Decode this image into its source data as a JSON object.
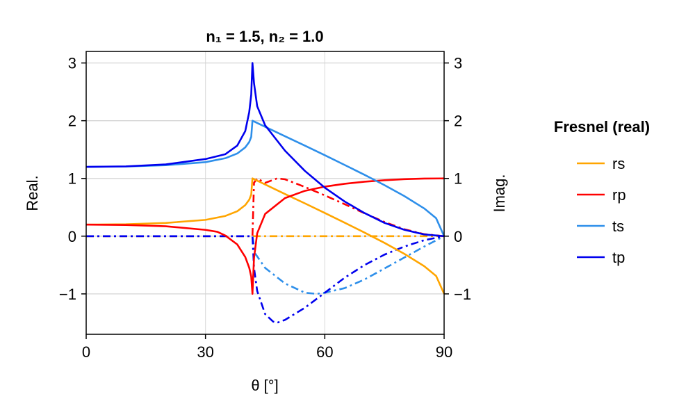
{
  "chart_data": {
    "type": "line",
    "title": "n₁ = 1.5, n₂ = 1.0",
    "xlabel": "θ [°]",
    "ylabel_left": "Real.",
    "ylabel_right": "Imag.",
    "xlim": [
      0,
      90
    ],
    "ylim": [
      -1.7,
      3.2
    ],
    "x_ticks": [
      0,
      30,
      60,
      90
    ],
    "x_tick_labels": [
      "0",
      "30",
      "60",
      "90"
    ],
    "y_ticks": [
      -1,
      0,
      1,
      2,
      3
    ],
    "y_tick_labels": [
      "−1",
      "0",
      "1",
      "2",
      "3"
    ],
    "grid": true,
    "legend": {
      "title": "Fresnel (real)",
      "placement": "right",
      "entries": [
        "rs",
        "rp",
        "ts",
        "tp"
      ]
    },
    "n1": 1.5,
    "n2": 1.0,
    "line_styles": {
      "real": "solid",
      "imag": "dashdot"
    },
    "series": [
      {
        "name": "rs",
        "color": "#FFA500",
        "real": [
          [
            0,
            0.2
          ],
          [
            10,
            0.206
          ],
          [
            20,
            0.229
          ],
          [
            30,
            0.282
          ],
          [
            35,
            0.35
          ],
          [
            38,
            0.432
          ],
          [
            40,
            0.538
          ],
          [
            41,
            0.631
          ],
          [
            41.5,
            0.72
          ],
          [
            41.81,
            1.0
          ],
          [
            45,
            0.895
          ],
          [
            50,
            0.73
          ],
          [
            55,
            0.568
          ],
          [
            60,
            0.402
          ],
          [
            65,
            0.233
          ],
          [
            70,
            0.062
          ],
          [
            75,
            -0.116
          ],
          [
            80,
            -0.306
          ],
          [
            85,
            -0.52
          ],
          [
            88,
            -0.69
          ],
          [
            90,
            -1.0
          ]
        ],
        "imag": [
          [
            0,
            0
          ],
          [
            41.81,
            0
          ],
          [
            45,
            0
          ],
          [
            60,
            0
          ],
          [
            90,
            0
          ]
        ]
      },
      {
        "name": "rp",
        "color": "#FF0000",
        "real": [
          [
            0,
            0.2
          ],
          [
            10,
            0.194
          ],
          [
            20,
            0.171
          ],
          [
            30,
            0.109
          ],
          [
            33,
            0.075
          ],
          [
            35,
            0.01
          ],
          [
            38,
            -0.144
          ],
          [
            40,
            -0.362
          ],
          [
            41,
            -0.548
          ],
          [
            41.5,
            -0.7
          ],
          [
            41.81,
            -1.0
          ],
          [
            42.2,
            -0.38
          ],
          [
            43,
            0.05
          ],
          [
            45,
            0.385
          ],
          [
            50,
            0.66
          ],
          [
            55,
            0.785
          ],
          [
            60,
            0.858
          ],
          [
            65,
            0.907
          ],
          [
            70,
            0.943
          ],
          [
            75,
            0.969
          ],
          [
            80,
            0.987
          ],
          [
            85,
            0.997
          ],
          [
            90,
            1.0
          ]
        ],
        "imag": [
          [
            0,
            0
          ],
          [
            41.81,
            0
          ],
          [
            42.2,
            0.925
          ],
          [
            43,
            0.999
          ],
          [
            45,
            0.923
          ],
          [
            48,
            1.0
          ],
          [
            50,
            0.985
          ],
          [
            55,
            0.852
          ],
          [
            60,
            0.706
          ],
          [
            65,
            0.553
          ],
          [
            70,
            0.396
          ],
          [
            75,
            0.246
          ],
          [
            80,
            0.12
          ],
          [
            85,
            0.034
          ],
          [
            90,
            0.0
          ]
        ]
      },
      {
        "name": "ts",
        "color": "#2E8FEA",
        "real": [
          [
            0,
            1.2
          ],
          [
            10,
            1.206
          ],
          [
            20,
            1.229
          ],
          [
            30,
            1.282
          ],
          [
            35,
            1.35
          ],
          [
            38,
            1.432
          ],
          [
            40,
            1.538
          ],
          [
            41,
            1.631
          ],
          [
            41.5,
            1.72
          ],
          [
            41.81,
            2.0
          ],
          [
            45,
            1.895
          ],
          [
            50,
            1.73
          ],
          [
            55,
            1.568
          ],
          [
            60,
            1.402
          ],
          [
            65,
            1.233
          ],
          [
            70,
            1.062
          ],
          [
            75,
            0.884
          ],
          [
            80,
            0.694
          ],
          [
            85,
            0.48
          ],
          [
            88,
            0.31
          ],
          [
            90,
            0.0
          ]
        ],
        "imag": [
          [
            0,
            0
          ],
          [
            41.81,
            0
          ],
          [
            42.5,
            -0.3
          ],
          [
            45,
            -0.55
          ],
          [
            50,
            -0.82
          ],
          [
            55,
            -0.98
          ],
          [
            58,
            -1.0
          ],
          [
            60,
            -0.98
          ],
          [
            65,
            -0.9
          ],
          [
            70,
            -0.75
          ],
          [
            75,
            -0.56
          ],
          [
            80,
            -0.37
          ],
          [
            85,
            -0.18
          ],
          [
            90,
            0.0
          ]
        ]
      },
      {
        "name": "tp",
        "color": "#0000EE",
        "real": [
          [
            0,
            1.2
          ],
          [
            10,
            1.209
          ],
          [
            20,
            1.243
          ],
          [
            30,
            1.336
          ],
          [
            35,
            1.42
          ],
          [
            38,
            1.57
          ],
          [
            40,
            1.82
          ],
          [
            41,
            2.15
          ],
          [
            41.5,
            2.45
          ],
          [
            41.81,
            3.0
          ],
          [
            42.2,
            2.65
          ],
          [
            43,
            2.25
          ],
          [
            45,
            1.92
          ],
          [
            50,
            1.48
          ],
          [
            55,
            1.13
          ],
          [
            60,
            0.84
          ],
          [
            65,
            0.6
          ],
          [
            70,
            0.4
          ],
          [
            75,
            0.23
          ],
          [
            80,
            0.11
          ],
          [
            85,
            0.03
          ],
          [
            90,
            0.0
          ]
        ],
        "imag": [
          [
            0,
            0
          ],
          [
            41.81,
            0
          ],
          [
            42.2,
            -0.55
          ],
          [
            43,
            -0.95
          ],
          [
            45,
            -1.35
          ],
          [
            47,
            -1.48
          ],
          [
            48,
            -1.5
          ],
          [
            50,
            -1.45
          ],
          [
            55,
            -1.24
          ],
          [
            60,
            -0.98
          ],
          [
            65,
            -0.72
          ],
          [
            70,
            -0.5
          ],
          [
            75,
            -0.32
          ],
          [
            80,
            -0.18
          ],
          [
            85,
            -0.07
          ],
          [
            90,
            0.0
          ]
        ]
      }
    ]
  }
}
